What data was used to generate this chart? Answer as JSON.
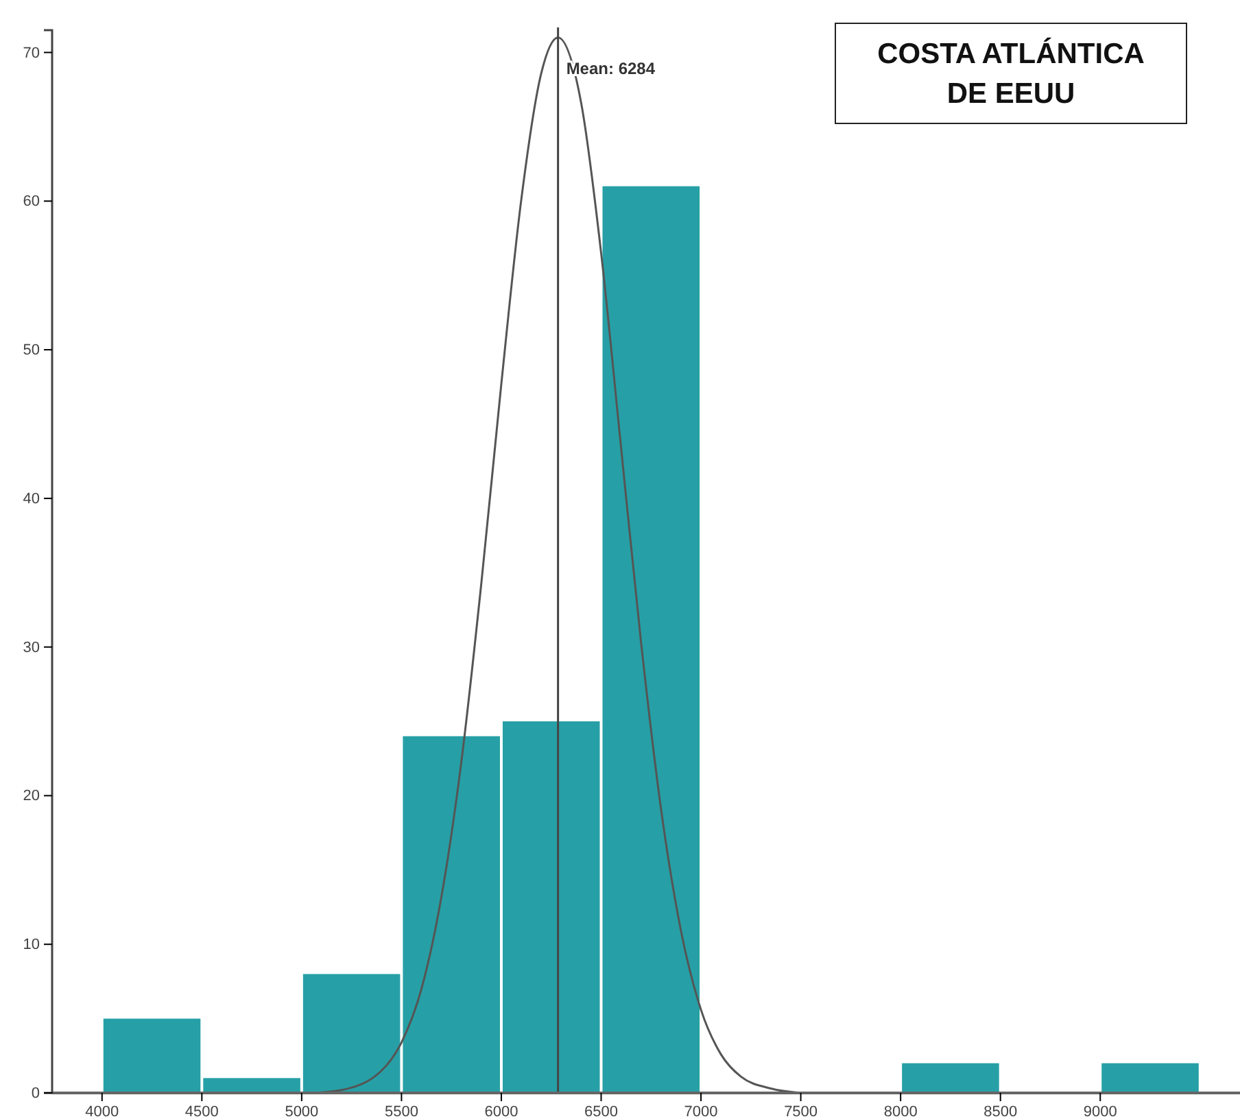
{
  "chart_data": {
    "type": "histogram",
    "title": "COSTA ATLÁNTICA DE EEUU",
    "bins": [
      4000,
      4500,
      5000,
      5500,
      6000,
      6500,
      7000,
      7500,
      8000,
      8500,
      9000,
      9500
    ],
    "values": [
      5,
      1,
      8,
      24,
      25,
      61,
      0,
      0,
      2,
      0,
      2
    ],
    "color": "#26a0a6",
    "series": [
      {
        "type": "line",
        "color": "#555555",
        "x": [
          5050,
          5200,
          5400,
          5500,
          5600,
          5700,
          5800,
          5900,
          6000,
          6100,
          6200,
          6284,
          6400,
          6500,
          6600,
          6700,
          6800,
          6900,
          7000,
          7100,
          7200,
          7350,
          7500
        ],
        "values": [
          0,
          0.2,
          1.5,
          3.4,
          7,
          13.2,
          22.3,
          34.3,
          47.7,
          60.1,
          68.6,
          71,
          66.6,
          56.5,
          43.4,
          30.3,
          19.1,
          10.9,
          5.6,
          2.6,
          1.1,
          0.3,
          0
        ]
      }
    ],
    "ref_lines": [
      {
        "axis": "x",
        "value": 6284,
        "label": "Mean: 6284",
        "color": "#444444"
      }
    ],
    "xlim": [
      3750,
      9700
    ],
    "ylim": [
      0,
      71.5
    ],
    "xticks": [
      4000,
      4500,
      5000,
      5500,
      6000,
      6500,
      7000,
      7500,
      8000,
      8500,
      9000
    ],
    "yticks": [
      0,
      10,
      20,
      30,
      40,
      50,
      60,
      70
    ],
    "grid": false
  }
}
